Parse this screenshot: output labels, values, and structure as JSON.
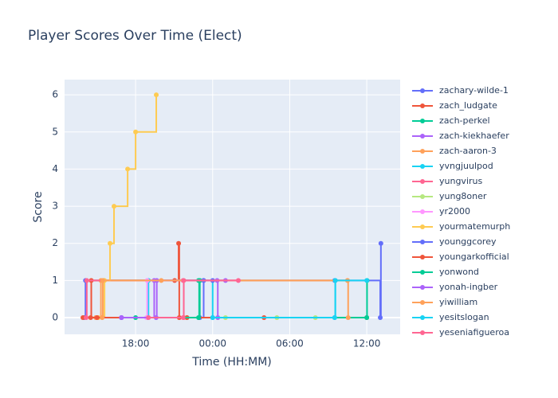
{
  "chart_data": {
    "type": "line",
    "line_shape": "hv",
    "title": "Player Scores Over Time (Elect)",
    "x_label": "Time (HH:MM)",
    "y_label": "Score",
    "xlim": [
      12.47,
      38.6
    ],
    "xticks": [
      {
        "value": 18,
        "label": "18:00"
      },
      {
        "value": 24,
        "label": "00:00"
      },
      {
        "value": 30,
        "label": "06:00"
      },
      {
        "value": 36,
        "label": "12:00"
      }
    ],
    "ylim": [
      -0.45,
      6.41
    ],
    "yticks": [
      0,
      1,
      2,
      3,
      4,
      5,
      6
    ],
    "grid": true,
    "legend": "right",
    "series": [
      {
        "name": "zachary-wilde-1",
        "color": "#636efa",
        "x": [
          14.0,
          14.1,
          23.3,
          33.5,
          37.05,
          37.1
        ],
        "values": [
          0,
          1,
          1,
          1,
          0,
          2
        ]
      },
      {
        "name": "zach_ludgate",
        "color": "#EF553B",
        "x": [
          13.9,
          14.55,
          21.04,
          21.35,
          21.4,
          36.0
        ],
        "values": [
          0,
          1,
          1,
          2,
          0,
          0
        ]
      },
      {
        "name": "zach-perkel",
        "color": "#00cc96",
        "x": [
          15.55,
          22.9,
          22.95,
          36.0,
          36.02
        ],
        "values": [
          1,
          1,
          0,
          0,
          1
        ]
      },
      {
        "name": "zach-kiekhaefer",
        "color": "#ab63fa",
        "x": [
          16.9,
          19.45,
          24.35,
          24.4
        ],
        "values": [
          0,
          1,
          1,
          0
        ]
      },
      {
        "name": "zach-aaron-3",
        "color": "#FFA15A",
        "x": [
          14.9,
          15.3,
          34.5,
          34.55
        ],
        "values": [
          0,
          1,
          1,
          0
        ]
      },
      {
        "name": "yvngjuulpod",
        "color": "#19d3f3",
        "x": [
          18.9,
          19.0,
          24.0,
          33.5,
          33.55
        ],
        "values": [
          0,
          1,
          0,
          0,
          1
        ]
      },
      {
        "name": "yungvirus",
        "color": "#FF6692",
        "x": [
          14.15,
          14.2,
          21.7,
          21.75
        ],
        "values": [
          0,
          1,
          1,
          0
        ]
      },
      {
        "name": "yung8oner",
        "color": "#B6E880",
        "x": [
          22.0,
          25.0,
          29.0,
          32.0
        ],
        "values": [
          0,
          0,
          0,
          0
        ]
      },
      {
        "name": "yr2000",
        "color": "#FF97FF",
        "x": [
          18.85,
          18.9,
          26.0
        ],
        "values": [
          0,
          1,
          1
        ]
      },
      {
        "name": "yourmatemurph",
        "color": "#FECB52",
        "x": [
          15.1,
          15.58,
          16.01,
          16.32,
          17.38,
          18.0,
          19.61
        ],
        "values": [
          0,
          1,
          2,
          3,
          4,
          5,
          6
        ]
      },
      {
        "name": "younggcorey",
        "color": "#636efa",
        "x": [
          16.9,
          23.0,
          23.3,
          24.0
        ],
        "values": [
          0,
          0,
          1,
          1
        ]
      },
      {
        "name": "youngarkofficial",
        "color": "#EF553B",
        "x": [
          14.5,
          15.0,
          22.0,
          28.0
        ],
        "values": [
          0,
          0,
          0,
          0
        ]
      },
      {
        "name": "yonwond",
        "color": "#00cc96",
        "x": [
          18.0,
          22.9,
          23.0
        ],
        "values": [
          0,
          0,
          1
        ]
      },
      {
        "name": "yonah-ingber",
        "color": "#ab63fa",
        "x": [
          16.9,
          19.6,
          19.65,
          25.0
        ],
        "values": [
          0,
          0,
          1,
          1
        ]
      },
      {
        "name": "yiwilliam",
        "color": "#FFA15A",
        "x": [
          15.4,
          15.45,
          20.0,
          34.5
        ],
        "values": [
          0,
          1,
          1,
          1
        ]
      },
      {
        "name": "yesitslogan",
        "color": "#19d3f3",
        "x": [
          24.0,
          33.5,
          33.55,
          36.0
        ],
        "values": [
          0,
          0,
          1,
          1
        ]
      },
      {
        "name": "yeseniafigueroa",
        "color": "#FF6692",
        "x": [
          19.0,
          21.7,
          21.75,
          26.0
        ],
        "values": [
          0,
          0,
          1,
          1
        ]
      }
    ]
  }
}
